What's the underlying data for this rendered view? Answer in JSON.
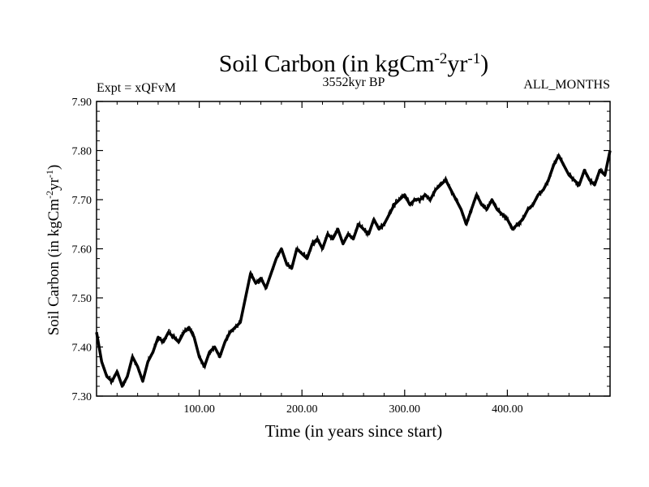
{
  "chart_data": {
    "type": "line",
    "title": {
      "prefix": "Soil Carbon (in kgCm",
      "sup1": "-2",
      "mid": "yr",
      "sup2": "-1",
      "suffix": ")"
    },
    "subtitle_left": "Expt = xQFvM",
    "subtitle_center": "3552kyr BP",
    "subtitle_right": "ALL_MONTHS",
    "xlabel": "Time (in years since start)",
    "ylabel": {
      "prefix": "Soil Carbon (in kgCm",
      "sup1": "-2",
      "mid": "yr",
      "sup2": "-1",
      "suffix": ")"
    },
    "xlim": [
      0,
      500
    ],
    "ylim": [
      7.3,
      7.9
    ],
    "x_ticks": [
      100,
      200,
      300,
      400
    ],
    "x_tick_labels": [
      "100.00",
      "200.00",
      "300.00",
      "400.00"
    ],
    "y_ticks": [
      7.3,
      7.4,
      7.5,
      7.6,
      7.7,
      7.8,
      7.9
    ],
    "y_tick_labels": [
      "7.30",
      "7.40",
      "7.50",
      "7.60",
      "7.70",
      "7.80",
      "7.90"
    ],
    "grid": false,
    "line_color": "#000000",
    "series": [
      {
        "name": "Soil Carbon",
        "x": [
          0,
          5,
          10,
          15,
          20,
          25,
          30,
          35,
          40,
          45,
          50,
          55,
          60,
          65,
          70,
          75,
          80,
          85,
          90,
          95,
          100,
          105,
          110,
          115,
          120,
          125,
          130,
          135,
          140,
          145,
          150,
          155,
          160,
          165,
          170,
          175,
          180,
          185,
          190,
          195,
          200,
          205,
          210,
          215,
          220,
          225,
          230,
          235,
          240,
          245,
          250,
          255,
          260,
          265,
          270,
          275,
          280,
          285,
          290,
          295,
          300,
          305,
          310,
          315,
          320,
          325,
          330,
          335,
          340,
          345,
          350,
          355,
          360,
          365,
          370,
          375,
          380,
          385,
          390,
          395,
          400,
          405,
          410,
          415,
          420,
          425,
          430,
          435,
          440,
          445,
          450,
          455,
          460,
          465,
          470,
          475,
          480,
          485,
          490,
          495,
          500
        ],
        "values": [
          7.43,
          7.37,
          7.34,
          7.33,
          7.35,
          7.32,
          7.34,
          7.38,
          7.36,
          7.33,
          7.37,
          7.39,
          7.42,
          7.41,
          7.43,
          7.42,
          7.41,
          7.43,
          7.44,
          7.42,
          7.38,
          7.36,
          7.39,
          7.4,
          7.38,
          7.41,
          7.43,
          7.44,
          7.45,
          7.5,
          7.55,
          7.53,
          7.54,
          7.52,
          7.55,
          7.58,
          7.6,
          7.57,
          7.56,
          7.6,
          7.59,
          7.58,
          7.61,
          7.62,
          7.6,
          7.63,
          7.62,
          7.64,
          7.61,
          7.63,
          7.62,
          7.65,
          7.64,
          7.63,
          7.66,
          7.64,
          7.65,
          7.67,
          7.69,
          7.7,
          7.71,
          7.69,
          7.7,
          7.7,
          7.71,
          7.7,
          7.72,
          7.73,
          7.74,
          7.72,
          7.7,
          7.68,
          7.65,
          7.68,
          7.71,
          7.69,
          7.68,
          7.7,
          7.68,
          7.67,
          7.66,
          7.64,
          7.65,
          7.66,
          7.68,
          7.69,
          7.71,
          7.72,
          7.74,
          7.77,
          7.79,
          7.77,
          7.75,
          7.74,
          7.73,
          7.76,
          7.74,
          7.73,
          7.76,
          7.75,
          7.8
        ]
      }
    ]
  }
}
